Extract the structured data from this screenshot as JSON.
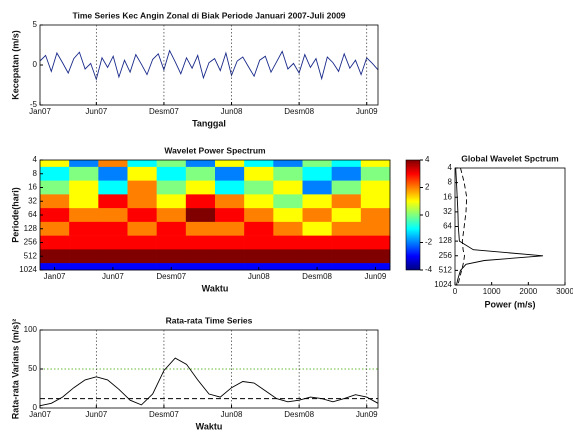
{
  "chart_data": [
    {
      "type": "line",
      "title": "Time Series Kec Angin Zonal di Biak Periode Januari 2007-Juli 2009",
      "xlabel": "Tanggal",
      "ylabel": "Kecepatan (m/s)",
      "categories": [
        "Jan07",
        null,
        null,
        null,
        null,
        null,
        null,
        null,
        null,
        null,
        "Jun07",
        null,
        null,
        null,
        null,
        null,
        null,
        null,
        null,
        null,
        null,
        null,
        "Desm07",
        null,
        null,
        null,
        null,
        null,
        null,
        null,
        null,
        null,
        null,
        null,
        "Jun08",
        null,
        null,
        null,
        null,
        null,
        null,
        null,
        null,
        null,
        null,
        null,
        "Desm08",
        null,
        null,
        null,
        null,
        null,
        null,
        null,
        null,
        null,
        null,
        null,
        "Jun09",
        null,
        null
      ],
      "series": [
        {
          "color": "#1a2a8a",
          "style": "solid",
          "values": [
            0.5,
            1.2,
            -0.8,
            1.5,
            0.3,
            -1.0,
            0.8,
            1.6,
            -0.5,
            0.2,
            -1.8,
            0.9,
            -0.3,
            1.1,
            -1.5,
            0.6,
            -0.9,
            1.3,
            0.1,
            -1.2,
            0.7,
            1.4,
            -0.6,
            1.8,
            0.4,
            -1.1,
            0.9,
            -0.4,
            1.2,
            -1.6,
            0.3,
            0.8,
            -0.7,
            1.5,
            -1.3,
            0.5,
            1.0,
            -0.2,
            -1.4,
            0.6,
            1.1,
            -0.9,
            0.4,
            1.7,
            -0.5,
            0.2,
            -1.0,
            1.3,
            -0.3,
            0.8,
            -1.7,
            1.0,
            0.3,
            -0.8,
            1.4,
            -0.4,
            0.6,
            -1.2,
            0.9,
            0.2,
            -0.6
          ]
        }
      ],
      "ylim": [
        -5,
        5
      ],
      "yticks": [
        -5,
        0,
        5
      ],
      "grid": true
    },
    {
      "type": "heatmap",
      "title": "Wavelet Power Spectrum",
      "xlabel": "Waktu",
      "ylabel": "Periode(hari)",
      "categories": [
        "Jan07",
        null,
        "Jun07",
        null,
        "Desm07",
        null,
        null,
        "Jun08",
        null,
        "Desm08",
        null,
        "Jun09"
      ],
      "y": [
        4,
        8,
        16,
        32,
        64,
        128,
        256,
        512,
        1024
      ],
      "values": [
        [
          1,
          -2,
          2,
          -1,
          0,
          -2,
          1,
          -1,
          -2,
          0,
          -1,
          1
        ],
        [
          -1,
          0,
          -2,
          1,
          -1,
          0,
          -2,
          1,
          0,
          -1,
          -2,
          0
        ],
        [
          0,
          1,
          -1,
          2,
          0,
          1,
          -1,
          0,
          1,
          -2,
          0,
          1
        ],
        [
          2,
          1,
          3,
          2,
          1,
          3,
          2,
          1,
          0,
          1,
          2,
          1
        ],
        [
          3,
          2,
          2,
          3,
          2,
          4,
          3,
          2,
          1,
          2,
          1,
          2
        ],
        [
          2,
          3,
          3,
          2,
          3,
          2,
          2,
          3,
          2,
          1,
          2,
          2
        ],
        [
          3,
          3,
          3,
          3,
          3,
          3,
          3,
          3,
          3,
          3,
          3,
          3
        ],
        [
          4,
          4,
          4,
          4,
          4,
          4,
          4,
          4,
          4,
          4,
          4,
          4
        ],
        [
          -3,
          -3,
          -3,
          -3,
          -3,
          -3,
          -3,
          -3,
          -3,
          -3,
          -3,
          -3
        ]
      ],
      "ylim": [
        4,
        1024
      ],
      "yticks": [
        4,
        8,
        16,
        32,
        64,
        128,
        256,
        512,
        1024
      ],
      "ylog": true,
      "yreverse": true,
      "colorbar": {
        "lim": [
          -4,
          4
        ],
        "ticks": [
          -4,
          -2,
          0,
          2,
          4
        ]
      }
    },
    {
      "type": "line",
      "title": "Global Wavelet Spctrum",
      "xlabel": "Power (m/s)",
      "y": [
        4,
        8,
        16,
        32,
        64,
        128,
        192,
        256,
        320,
        384,
        512,
        768,
        1024
      ],
      "series": [
        {
          "color": "#000000",
          "style": "solid",
          "values": [
            20,
            40,
            60,
            80,
            90,
            120,
            500,
            2400,
            800,
            300,
            150,
            80,
            40
          ]
        },
        {
          "color": "#000000",
          "style": "dashed",
          "values": [
            150,
            250,
            320,
            300,
            250,
            200,
            220,
            260,
            240,
            220,
            180,
            120,
            80
          ]
        }
      ],
      "xlim": [
        0,
        3000
      ],
      "xticks": [
        0,
        1000,
        2000,
        3000
      ],
      "ylim": [
        4,
        1024
      ],
      "yticks": [
        4,
        8,
        16,
        32,
        64,
        128,
        256,
        512,
        1024
      ],
      "ylog": true,
      "yreverse": true
    },
    {
      "type": "line",
      "title": "Rata-rata Time Series",
      "xlabel": "Waktu",
      "ylabel": "Rata-rata Varians (m/s)²",
      "categories": [
        "Jan07",
        null,
        null,
        null,
        null,
        "Jun07",
        null,
        null,
        null,
        null,
        null,
        "Desm07",
        null,
        null,
        null,
        null,
        null,
        "Jun08",
        null,
        null,
        null,
        null,
        null,
        "Desm08",
        null,
        null,
        null,
        null,
        null,
        "Jun09",
        null
      ],
      "series": [
        {
          "color": "#000000",
          "style": "solid",
          "values": [
            3,
            6,
            14,
            26,
            36,
            40,
            36,
            24,
            10,
            4,
            18,
            48,
            64,
            56,
            36,
            18,
            14,
            26,
            34,
            32,
            22,
            12,
            8,
            10,
            14,
            12,
            8,
            12,
            17,
            14,
            6
          ]
        }
      ],
      "hlines": [
        {
          "value": 50,
          "color": "#66bb33",
          "style": "dotted"
        },
        {
          "value": 12,
          "color": "#000000",
          "style": "dashed"
        }
      ],
      "ylim": [
        0,
        100
      ],
      "yticks": [
        0,
        50,
        100
      ],
      "grid": true
    }
  ]
}
